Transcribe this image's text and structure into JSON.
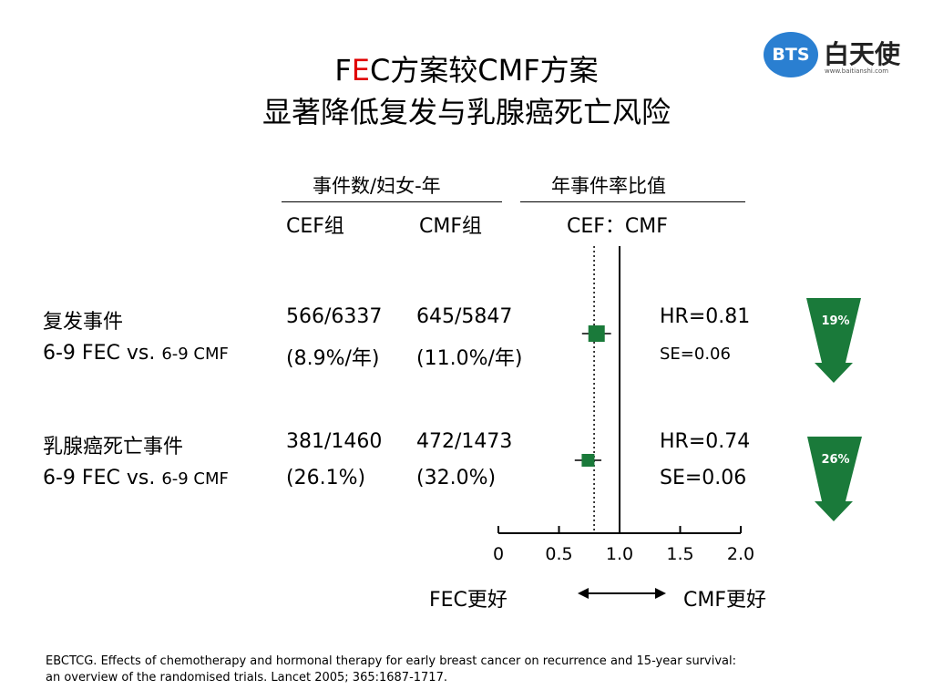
{
  "logo": {
    "badge": "BTS",
    "name": "白天使",
    "url": "www.baitianshi.com"
  },
  "title": {
    "line1_a": "F",
    "line1_b": "E",
    "line1_c": "C方案较CMF方案",
    "line2": "显著降低复发与乳腺癌死亡风险"
  },
  "headers": {
    "events_group": "事件数/妇女-年",
    "ratio_group": "年事件率比值",
    "col_cef": "CEF组",
    "col_cmf": "CMF组",
    "col_ratio": "CEF：CMF"
  },
  "rows": [
    {
      "label1": "复发事件",
      "label2_a": "6-9 FEC vs. ",
      "label2_b": "6-9 CMF",
      "cef1": "566/6337",
      "cef2": "(8.9%/年)",
      "cmf1": "645/5847",
      "cmf2": "(11.0%/年)",
      "hr": "HR=0.81",
      "se": "SE=0.06",
      "reduction": "19%"
    },
    {
      "label1": "乳腺癌死亡事件",
      "label2_a": "6-9 FEC vs. ",
      "label2_b": "6-9 CMF",
      "cef1": "381/1460",
      "cef2": "(26.1%)",
      "cmf1": "472/1473",
      "cmf2": "(32.0%)",
      "hr": "HR=0.74",
      "se": "SE=0.06",
      "reduction": "26%"
    }
  ],
  "axis": {
    "favor_left": "FEC更好",
    "favor_right": "CMF更好"
  },
  "reference": {
    "line1": "EBCTCG. Effects of chemotherapy and hormonal therapy for early breast cancer on recurrence and 15-year survival:",
    "line2": "an overview of the randomised trials. Lancet 2005; 365:1687-1717."
  },
  "colors": {
    "marker": "#1a7a3a",
    "arrow": "#1a7a3a",
    "title_accent": "#e00000"
  },
  "chart_data": {
    "type": "scatter",
    "subtype": "forest-plot",
    "categories": [
      "复发事件",
      "乳腺癌死亡事件"
    ],
    "values": [
      0.81,
      0.74
    ],
    "ci_low": [
      0.69,
      0.63
    ],
    "ci_high": [
      0.93,
      0.85
    ],
    "reference_lines": [
      1.0,
      0.79
    ],
    "xlim": [
      0,
      2.0
    ],
    "xticks": [
      0,
      0.5,
      1.0,
      1.5,
      2.0
    ],
    "xtick_labels": [
      "0",
      "0.5",
      "1.0",
      "1.5",
      "2.0"
    ],
    "xlabel": "",
    "ylabel": ""
  }
}
